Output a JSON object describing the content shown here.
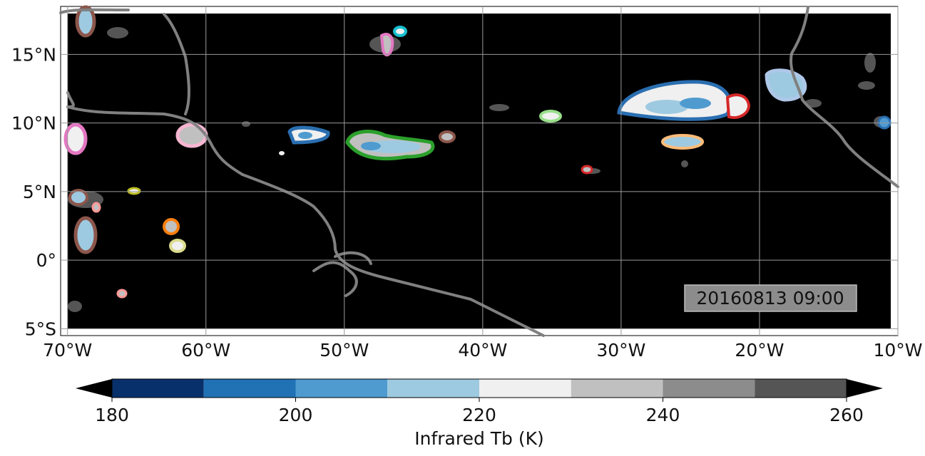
{
  "map": {
    "lon_ticks": [
      "70°W",
      "60°W",
      "50°W",
      "40°W",
      "30°W",
      "20°W",
      "10°W"
    ],
    "lat_ticks": [
      "15°N",
      "10°N",
      "5°N",
      "0°",
      "5°S"
    ],
    "lon_values": [
      -70,
      -60,
      -50,
      -40,
      -30,
      -20,
      -10
    ],
    "lat_values": [
      15,
      10,
      5,
      0,
      -5
    ],
    "extent": {
      "lon": [
        -70.5,
        -10
      ],
      "lat": [
        -5.5,
        18.5
      ]
    },
    "timestamp": "20160813 09:00",
    "background_color": "#000000",
    "coastline_color": "#808080",
    "gridline_color": "#9a9a9a"
  },
  "colorbar": {
    "label": "Infrared Tb (K)",
    "tick_labels": [
      "180",
      "200",
      "220",
      "240",
      "260"
    ],
    "bins": [
      180,
      190,
      200,
      210,
      220,
      230,
      240,
      250,
      260
    ],
    "colors": [
      "#08306b",
      "#2171b5",
      "#4f9bd0",
      "#9ecae1",
      "#f0f0f0",
      "#c0c0c0",
      "#8c8c8c",
      "#555555"
    ],
    "extend_color": "#000000"
  },
  "cloud_outline_colors": [
    "#2a6eb0",
    "#2ca02c",
    "#d62728",
    "#ff7f0e",
    "#9467bd",
    "#8c564b",
    "#e377c2",
    "#bcbd22",
    "#17becf",
    "#aec7e8",
    "#ffbb78",
    "#98df8a",
    "#ff9896",
    "#f7b6d2",
    "#dbdb8d"
  ]
}
